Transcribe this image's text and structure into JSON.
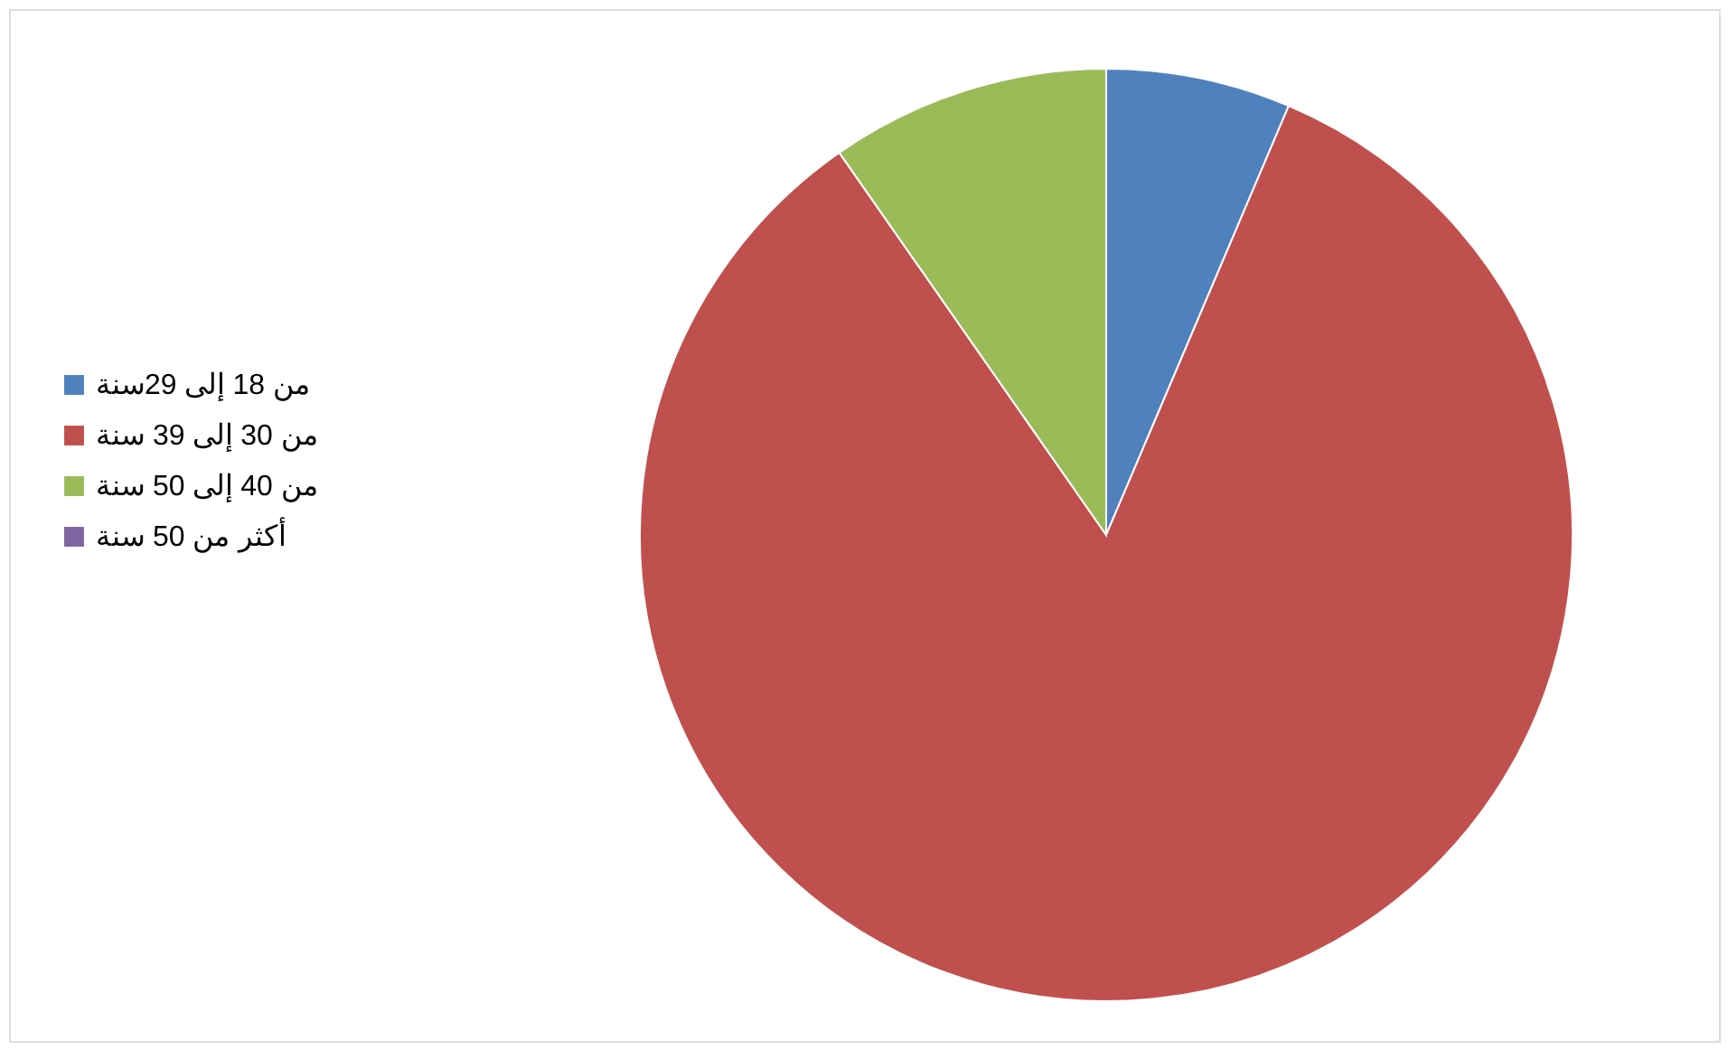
{
  "chart_data": {
    "type": "pie",
    "categories": [
      "من 18 إلى 29سنة",
      "من 30 إلى 39 سنة",
      "من 40 إلى 50 سنة ",
      "أكثر من 50 سنة"
    ],
    "values": [
      6.4,
      83.9,
      9.7,
      0
    ],
    "colors": [
      "#4f81bd",
      "#c0504d",
      "#9bbb59",
      "#8064a2"
    ],
    "legend": "left"
  }
}
